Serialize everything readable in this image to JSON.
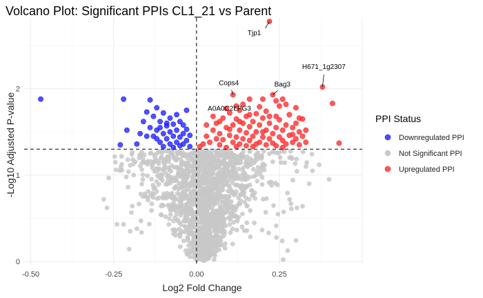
{
  "chart_data": {
    "type": "scatter",
    "title": "Volcano Plot: Significant PPIs CL1_21 vs Parent",
    "xlabel": "Log2 Fold Change",
    "ylabel": "-Log10 Adjusted P-value",
    "xlim": [
      -0.52,
      0.5
    ],
    "ylim": [
      -0.04,
      2.82
    ],
    "x_ticks": [
      -0.5,
      -0.25,
      0.0,
      0.25
    ],
    "x_tick_labels": [
      "-0.50",
      "-0.25",
      "0.00",
      "0.25"
    ],
    "y_ticks": [
      0,
      1,
      2
    ],
    "y_tick_labels": [
      "0",
      "1",
      "2"
    ],
    "grid": true,
    "thresholds": {
      "vertical_x": 0.0,
      "horizontal_y": 1.3
    },
    "legend": {
      "title": "PPI Status",
      "position": "right",
      "entries": [
        {
          "label": "Downregulated PPI",
          "color": "#1f1fff"
        },
        {
          "label": "Not Significant PPI",
          "color": "#c8c8c8"
        },
        {
          "label": "Upregulated PPI",
          "color": "#ff2a2a"
        }
      ]
    },
    "series": [
      {
        "name": "Downregulated PPI",
        "color": "#1f1fff",
        "points": [
          [
            -0.47,
            1.88
          ],
          [
            -0.22,
            1.88
          ],
          [
            -0.21,
            1.52
          ],
          [
            -0.23,
            1.35
          ],
          [
            -0.18,
            1.36
          ],
          [
            -0.17,
            1.48
          ],
          [
            -0.16,
            1.62
          ],
          [
            -0.15,
            1.73
          ],
          [
            -0.14,
            1.87
          ],
          [
            -0.14,
            1.55
          ],
          [
            -0.13,
            1.45
          ],
          [
            -0.13,
            1.68
          ],
          [
            -0.12,
            1.52
          ],
          [
            -0.12,
            1.78
          ],
          [
            -0.11,
            1.38
          ],
          [
            -0.11,
            1.62
          ],
          [
            -0.1,
            1.48
          ],
          [
            -0.1,
            1.72
          ],
          [
            -0.1,
            1.33
          ],
          [
            -0.09,
            1.57
          ],
          [
            -0.09,
            1.42
          ],
          [
            -0.08,
            1.66
          ],
          [
            -0.08,
            1.36
          ],
          [
            -0.08,
            1.5
          ],
          [
            -0.07,
            1.45
          ],
          [
            -0.07,
            1.59
          ],
          [
            -0.06,
            1.38
          ],
          [
            -0.06,
            1.52
          ],
          [
            -0.06,
            1.7
          ],
          [
            -0.05,
            1.44
          ],
          [
            -0.05,
            1.62
          ],
          [
            -0.05,
            1.34
          ],
          [
            -0.04,
            1.48
          ],
          [
            -0.04,
            1.58
          ],
          [
            -0.03,
            1.4
          ],
          [
            -0.03,
            1.53
          ],
          [
            -0.03,
            1.75
          ],
          [
            -0.02,
            1.46
          ],
          [
            -0.02,
            1.33
          ],
          [
            -0.12,
            1.42
          ],
          [
            -0.15,
            1.45
          ],
          [
            -0.09,
            1.6
          ],
          [
            -0.07,
            1.32
          ],
          [
            -0.11,
            1.55
          ],
          [
            -0.04,
            1.36
          ]
        ]
      },
      {
        "name": "Upregulated PPI",
        "color": "#ff2a2a",
        "points": [
          [
            0.22,
            2.78
          ],
          [
            0.38,
            2.02
          ],
          [
            0.41,
            1.83
          ],
          [
            0.43,
            1.37
          ],
          [
            0.23,
            1.93
          ],
          [
            0.11,
            1.93
          ],
          [
            0.16,
            1.88
          ],
          [
            0.2,
            1.88
          ],
          [
            0.26,
            1.88
          ],
          [
            0.24,
            1.86
          ],
          [
            0.12,
            1.8
          ],
          [
            0.02,
            1.36
          ],
          [
            0.01,
            1.33
          ],
          [
            0.03,
            1.45
          ],
          [
            0.04,
            1.38
          ],
          [
            0.05,
            1.52
          ],
          [
            0.06,
            1.42
          ],
          [
            0.06,
            1.6
          ],
          [
            0.07,
            1.35
          ],
          [
            0.07,
            1.48
          ],
          [
            0.08,
            1.66
          ],
          [
            0.08,
            1.41
          ],
          [
            0.09,
            1.55
          ],
          [
            0.09,
            1.32
          ],
          [
            0.1,
            1.46
          ],
          [
            0.1,
            1.72
          ],
          [
            0.11,
            1.38
          ],
          [
            0.11,
            1.58
          ],
          [
            0.12,
            1.44
          ],
          [
            0.12,
            1.65
          ],
          [
            0.13,
            1.36
          ],
          [
            0.13,
            1.52
          ],
          [
            0.13,
            1.75
          ],
          [
            0.14,
            1.42
          ],
          [
            0.14,
            1.6
          ],
          [
            0.15,
            1.34
          ],
          [
            0.15,
            1.49
          ],
          [
            0.15,
            1.68
          ],
          [
            0.16,
            1.4
          ],
          [
            0.16,
            1.56
          ],
          [
            0.17,
            1.45
          ],
          [
            0.17,
            1.62
          ],
          [
            0.17,
            1.33
          ],
          [
            0.18,
            1.5
          ],
          [
            0.18,
            1.71
          ],
          [
            0.19,
            1.38
          ],
          [
            0.19,
            1.58
          ],
          [
            0.2,
            1.44
          ],
          [
            0.2,
            1.66
          ],
          [
            0.21,
            1.35
          ],
          [
            0.21,
            1.52
          ],
          [
            0.22,
            1.42
          ],
          [
            0.22,
            1.6
          ],
          [
            0.23,
            1.37
          ],
          [
            0.23,
            1.48
          ],
          [
            0.24,
            1.55
          ],
          [
            0.24,
            1.34
          ],
          [
            0.25,
            1.44
          ],
          [
            0.25,
            1.64
          ],
          [
            0.26,
            1.4
          ],
          [
            0.26,
            1.52
          ],
          [
            0.27,
            1.36
          ],
          [
            0.27,
            1.58
          ],
          [
            0.28,
            1.46
          ],
          [
            0.28,
            1.7
          ],
          [
            0.29,
            1.38
          ],
          [
            0.29,
            1.55
          ],
          [
            0.3,
            1.42
          ],
          [
            0.3,
            1.6
          ],
          [
            0.31,
            1.35
          ],
          [
            0.31,
            1.5
          ],
          [
            0.32,
            1.45
          ],
          [
            0.32,
            1.65
          ],
          [
            0.33,
            1.38
          ],
          [
            0.33,
            1.52
          ],
          [
            0.3,
            1.78
          ],
          [
            0.25,
            1.8
          ],
          [
            0.19,
            1.79
          ],
          [
            0.14,
            1.82
          ],
          [
            0.09,
            1.77
          ],
          [
            0.05,
            1.68
          ],
          [
            0.03,
            1.58
          ],
          [
            0.21,
            1.74
          ],
          [
            0.27,
            1.82
          ],
          [
            0.18,
            1.36
          ],
          [
            0.12,
            1.33
          ],
          [
            0.24,
            1.68
          ],
          [
            0.29,
            1.47
          ],
          [
            0.16,
            1.7
          ],
          [
            0.07,
            1.62
          ],
          [
            0.1,
            1.53
          ],
          [
            0.2,
            1.5
          ],
          [
            0.26,
            1.32
          ],
          [
            0.31,
            1.66
          ],
          [
            0.13,
            1.62
          ],
          [
            0.22,
            1.68
          ]
        ]
      }
    ],
    "not_significant": {
      "name": "Not Significant PPI",
      "color": "#c8c8c8",
      "count": 1600,
      "note": "dense cloud centred near x=0, y from 0 to 1.3"
    },
    "annotations": [
      {
        "label": "Tjp1",
        "x": 0.22,
        "y": 2.78
      },
      {
        "label": "H671_1g2307",
        "x": 0.38,
        "y": 2.02
      },
      {
        "label": "Cops4",
        "x": 0.11,
        "y": 1.93
      },
      {
        "label": "Bag3",
        "x": 0.23,
        "y": 1.93
      },
      {
        "label": "A0A0C2LPG3",
        "x": 0.12,
        "y": 1.8
      }
    ]
  }
}
